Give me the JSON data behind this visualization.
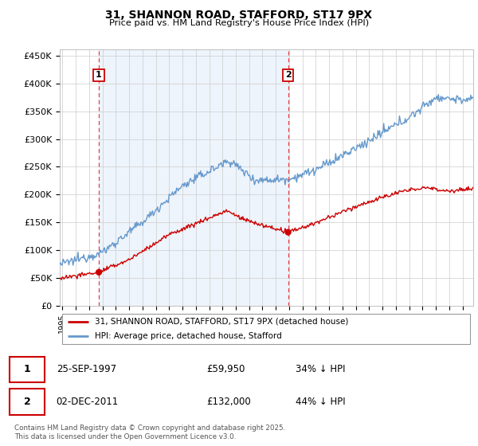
{
  "title1": "31, SHANNON ROAD, STAFFORD, ST17 9PX",
  "title2": "Price paid vs. HM Land Registry's House Price Index (HPI)",
  "yticks": [
    0,
    50000,
    100000,
    150000,
    200000,
    250000,
    300000,
    350000,
    400000,
    450000
  ],
  "ytick_labels": [
    "£0",
    "£50K",
    "£100K",
    "£150K",
    "£200K",
    "£250K",
    "£300K",
    "£350K",
    "£400K",
    "£450K"
  ],
  "legend_line1": "31, SHANNON ROAD, STAFFORD, ST17 9PX (detached house)",
  "legend_line2": "HPI: Average price, detached house, Stafford",
  "annotation1_date": "25-SEP-1997",
  "annotation1_price": "£59,950",
  "annotation1_hpi": "34% ↓ HPI",
  "annotation2_date": "02-DEC-2011",
  "annotation2_price": "£132,000",
  "annotation2_hpi": "44% ↓ HPI",
  "footer": "Contains HM Land Registry data © Crown copyright and database right 2025.\nThis data is licensed under the Open Government Licence v3.0.",
  "line_color_red": "#cc0000",
  "line_color_blue": "#6699cc",
  "vline_color": "#dd4444",
  "annotation_box_color": "#cc0000",
  "bg_color": "#ffffff",
  "chart_bg": "#eef4fb",
  "grid_color": "#cccccc",
  "point1_x": 1997.73,
  "point1_y": 59950,
  "point2_x": 2011.92,
  "point2_y": 132000,
  "xmin": 1994.8,
  "xmax": 2025.8,
  "ymin": 0,
  "ymax": 462000
}
